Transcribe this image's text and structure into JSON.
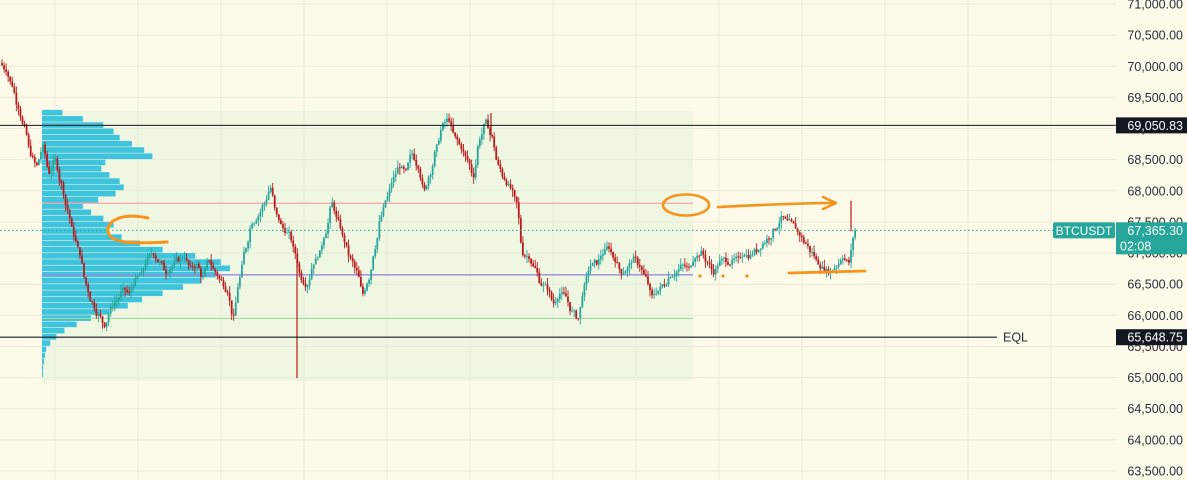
{
  "chart_data": {
    "type": "candlestick",
    "symbol": "BTCUSDT",
    "last_price": "67,365.30",
    "countdown": "02:08",
    "ylim": [
      63300,
      71000
    ],
    "y_ticks": [
      "71,000.00",
      "70,500.00",
      "70,000.00",
      "69,500.00",
      "69,000.00",
      "68,500.00",
      "68,000.00",
      "67,500.00",
      "67,000.00",
      "66,500.00",
      "66,000.00",
      "65,500.00",
      "65,000.00",
      "64,500.00",
      "64,000.00",
      "63,500.00"
    ],
    "horizontal_levels": [
      {
        "name": "upper-line",
        "value": 69050.83,
        "label": "69,050.83",
        "color": "#131722"
      },
      {
        "name": "eql-line",
        "value": 65648.75,
        "label": "65,648.75",
        "text": "EQL",
        "color": "#131722"
      }
    ],
    "volume_profile": {
      "range_low": 65000,
      "range_high": 69250,
      "poc": 66650,
      "value_area_high": 67800,
      "value_area_low": 65950,
      "bar_color": "#35c1dc",
      "bins": [
        [
          65000,
          1
        ],
        [
          65100,
          1
        ],
        [
          65200,
          2
        ],
        [
          65300,
          3
        ],
        [
          65400,
          4
        ],
        [
          65500,
          8
        ],
        [
          65600,
          14
        ],
        [
          65700,
          22
        ],
        [
          65800,
          34
        ],
        [
          65900,
          48
        ],
        [
          66000,
          66
        ],
        [
          66100,
          84
        ],
        [
          66200,
          98
        ],
        [
          66300,
          118
        ],
        [
          66400,
          138
        ],
        [
          66500,
          156
        ],
        [
          66600,
          170
        ],
        [
          66700,
          184
        ],
        [
          66800,
          175
        ],
        [
          66900,
          150
        ],
        [
          67000,
          118
        ],
        [
          67100,
          96
        ],
        [
          67200,
          78
        ],
        [
          67300,
          64
        ],
        [
          67400,
          70
        ],
        [
          67500,
          60
        ],
        [
          67600,
          48
        ],
        [
          67700,
          40
        ],
        [
          67800,
          55
        ],
        [
          67900,
          72
        ],
        [
          68000,
          80
        ],
        [
          68100,
          76
        ],
        [
          68200,
          66
        ],
        [
          68300,
          58
        ],
        [
          68400,
          62
        ],
        [
          68500,
          108
        ],
        [
          68600,
          100
        ],
        [
          68700,
          88
        ],
        [
          68800,
          76
        ],
        [
          68900,
          70
        ],
        [
          69000,
          60
        ],
        [
          69100,
          40
        ],
        [
          69200,
          20
        ]
      ]
    },
    "closes": [
      69950,
      69700,
      69350,
      69000,
      68600,
      68400,
      68700,
      68300,
      68500,
      68100,
      67700,
      67300,
      67000,
      66500,
      66200,
      66000,
      65850,
      66100,
      66250,
      66400,
      66350,
      66550,
      66650,
      66900,
      67000,
      66850,
      66700,
      66800,
      66900,
      66950,
      66750,
      66800,
      66600,
      66900,
      66700,
      66550,
      66400,
      65950,
      66600,
      67100,
      67500,
      67600,
      67800,
      68050,
      67600,
      67400,
      67300,
      67000,
      66600,
      66500,
      66850,
      67000,
      67350,
      67800,
      67500,
      67200,
      66900,
      66700,
      66350,
      66600,
      67100,
      67600,
      67900,
      68200,
      68400,
      68300,
      68600,
      68400,
      68000,
      68300,
      68700,
      69050,
      69150,
      68850,
      68700,
      68500,
      68250,
      68850,
      69100,
      68850,
      68400,
      68200,
      68050,
      67800,
      67000,
      66950,
      66750,
      66500,
      66450,
      66200,
      66350,
      66300,
      66050,
      65950,
      66450,
      66800,
      66850,
      67000,
      67100,
      66900,
      66700,
      66750,
      66900,
      66800,
      66600,
      66300,
      66400,
      66500,
      66650,
      66700,
      66800,
      66750,
      66950,
      67000,
      66850,
      66700,
      66850,
      66900,
      66850,
      66900,
      67000,
      66950,
      67050,
      67150,
      67250,
      67400,
      67550,
      67500,
      67450,
      67300,
      67150,
      67000,
      66850,
      66750,
      66700,
      66800,
      66950,
      66850,
      67365
    ],
    "shape_colors": {
      "orange": "#f7931a",
      "up": "#26a69a",
      "down": "#ef5350",
      "bull_candle": "#26a69a",
      "bear_candle": "#b71c1c"
    }
  }
}
